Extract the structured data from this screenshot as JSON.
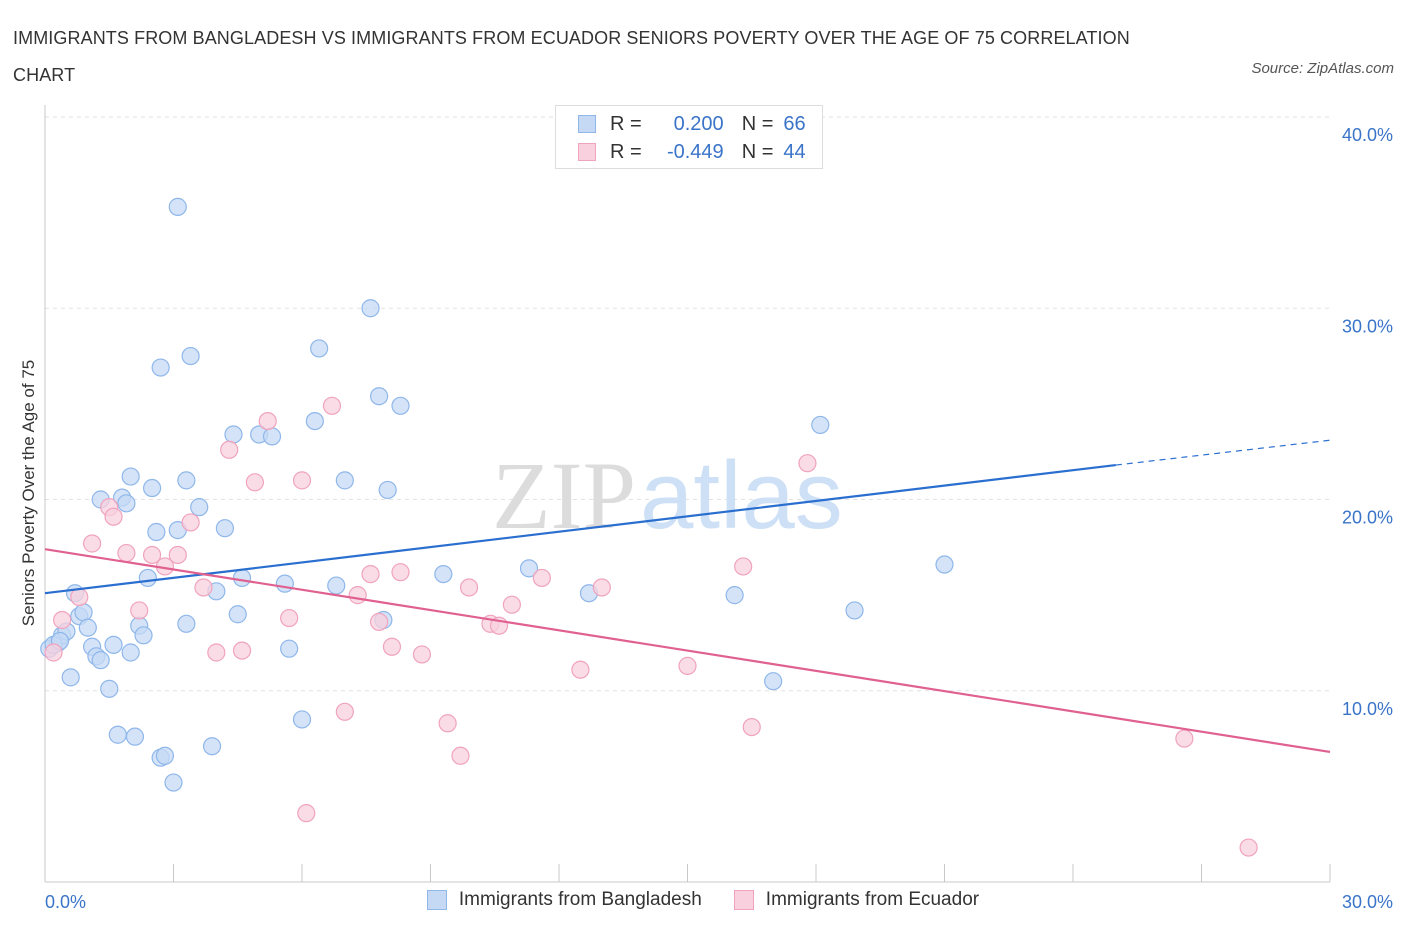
{
  "title": "IMMIGRANTS FROM BANGLADESH VS IMMIGRANTS FROM ECUADOR SENIORS POVERTY OVER THE AGE OF 75 CORRELATION CHART",
  "source": "Source: ZipAtlas.com",
  "watermark": {
    "bold": "ZIP",
    "light": "atlas"
  },
  "legend": [
    {
      "r_label": "R =",
      "r_value": "0.200",
      "n_label": "N =",
      "n_value": "66"
    },
    {
      "r_label": "R =",
      "r_value": "-0.449",
      "n_label": "N =",
      "n_value": "44"
    }
  ],
  "chart_data": {
    "type": "scatter",
    "xlabel": "",
    "ylabel": "Seniors Poverty Over the Age of 75",
    "xlim": [
      0,
      30
    ],
    "ylim": [
      0,
      40
    ],
    "x_tick_labels": [
      "0.0%",
      "30.0%"
    ],
    "y_ticks": [
      10,
      20,
      30,
      40
    ],
    "y_tick_labels": [
      "10.0%",
      "20.0%",
      "30.0%",
      "40.0%"
    ],
    "grid": true,
    "legend_position": "top-center",
    "series": [
      {
        "name": "Immigrants from Bangladesh",
        "color": "#8fb7ea",
        "fill": "#c5d9f5",
        "line_color": "#2a6fcf",
        "trend": {
          "x": [
            0,
            25
          ],
          "y": [
            15.1,
            21.8
          ],
          "dash_to_x": 30,
          "dash_to_y": 23.1
        },
        "points": [
          [
            0.1,
            12.2
          ],
          [
            0.3,
            12.5
          ],
          [
            0.4,
            12.9
          ],
          [
            0.5,
            13.1
          ],
          [
            0.6,
            10.7
          ],
          [
            0.7,
            15.1
          ],
          [
            0.8,
            13.9
          ],
          [
            0.9,
            14.1
          ],
          [
            1.0,
            13.3
          ],
          [
            1.1,
            12.3
          ],
          [
            1.2,
            11.8
          ],
          [
            1.3,
            20.0
          ],
          [
            1.3,
            11.6
          ],
          [
            1.5,
            10.1
          ],
          [
            1.6,
            12.4
          ],
          [
            1.7,
            7.7
          ],
          [
            1.8,
            20.1
          ],
          [
            1.9,
            19.8
          ],
          [
            2.0,
            12.0
          ],
          [
            2.0,
            21.2
          ],
          [
            2.1,
            7.6
          ],
          [
            2.2,
            13.4
          ],
          [
            2.3,
            12.9
          ],
          [
            2.4,
            15.9
          ],
          [
            2.5,
            20.6
          ],
          [
            2.6,
            18.3
          ],
          [
            2.7,
            6.5
          ],
          [
            2.7,
            26.9
          ],
          [
            2.8,
            6.6
          ],
          [
            3.0,
            5.2
          ],
          [
            3.1,
            35.3
          ],
          [
            3.1,
            18.4
          ],
          [
            3.3,
            13.5
          ],
          [
            3.3,
            21.0
          ],
          [
            3.4,
            27.5
          ],
          [
            3.6,
            19.6
          ],
          [
            3.9,
            7.1
          ],
          [
            4.0,
            15.2
          ],
          [
            4.2,
            18.5
          ],
          [
            4.4,
            23.4
          ],
          [
            4.5,
            14.0
          ],
          [
            4.6,
            15.9
          ],
          [
            5.0,
            23.4
          ],
          [
            5.3,
            23.3
          ],
          [
            5.6,
            15.6
          ],
          [
            5.7,
            12.2
          ],
          [
            6.0,
            8.5
          ],
          [
            6.3,
            24.1
          ],
          [
            6.4,
            27.9
          ],
          [
            6.8,
            15.5
          ],
          [
            7.0,
            21.0
          ],
          [
            7.6,
            30.0
          ],
          [
            7.8,
            25.4
          ],
          [
            7.9,
            13.7
          ],
          [
            8.0,
            20.5
          ],
          [
            8.3,
            24.9
          ],
          [
            9.3,
            16.1
          ],
          [
            11.3,
            16.4
          ],
          [
            12.7,
            15.1
          ],
          [
            16.1,
            15.0
          ],
          [
            17.0,
            10.5
          ],
          [
            18.1,
            23.9
          ],
          [
            18.9,
            14.2
          ],
          [
            21.0,
            16.6
          ],
          [
            0.2,
            12.4
          ],
          [
            0.35,
            12.6
          ]
        ]
      },
      {
        "name": "Immigrants from Ecuador",
        "color": "#f0a3bd",
        "fill": "#f8d0de",
        "line_color": "#e0608f",
        "trend": {
          "x": [
            0,
            30
          ],
          "y": [
            17.4,
            6.8
          ]
        },
        "points": [
          [
            0.2,
            12.0
          ],
          [
            0.4,
            13.7
          ],
          [
            0.8,
            14.9
          ],
          [
            1.1,
            17.7
          ],
          [
            1.5,
            19.6
          ],
          [
            1.6,
            19.1
          ],
          [
            1.9,
            17.2
          ],
          [
            2.2,
            14.2
          ],
          [
            2.5,
            17.1
          ],
          [
            2.8,
            16.5
          ],
          [
            3.1,
            17.1
          ],
          [
            3.4,
            18.8
          ],
          [
            3.7,
            15.4
          ],
          [
            4.0,
            12.0
          ],
          [
            4.3,
            22.6
          ],
          [
            4.6,
            12.1
          ],
          [
            4.9,
            20.9
          ],
          [
            5.2,
            24.1
          ],
          [
            5.7,
            13.8
          ],
          [
            6.0,
            21.0
          ],
          [
            6.7,
            24.9
          ],
          [
            7.0,
            8.9
          ],
          [
            7.3,
            15.0
          ],
          [
            7.6,
            16.1
          ],
          [
            7.8,
            13.6
          ],
          [
            8.1,
            12.3
          ],
          [
            8.3,
            16.2
          ],
          [
            8.8,
            11.9
          ],
          [
            9.4,
            8.3
          ],
          [
            9.7,
            6.6
          ],
          [
            9.9,
            15.4
          ],
          [
            10.4,
            13.5
          ],
          [
            10.6,
            13.4
          ],
          [
            10.9,
            14.5
          ],
          [
            11.6,
            15.9
          ],
          [
            12.5,
            11.1
          ],
          [
            13.0,
            15.4
          ],
          [
            6.1,
            3.6
          ],
          [
            15.0,
            11.3
          ],
          [
            16.3,
            16.5
          ],
          [
            16.5,
            8.1
          ],
          [
            17.8,
            21.9
          ],
          [
            26.6,
            7.5
          ],
          [
            28.1,
            1.8
          ]
        ]
      }
    ]
  }
}
